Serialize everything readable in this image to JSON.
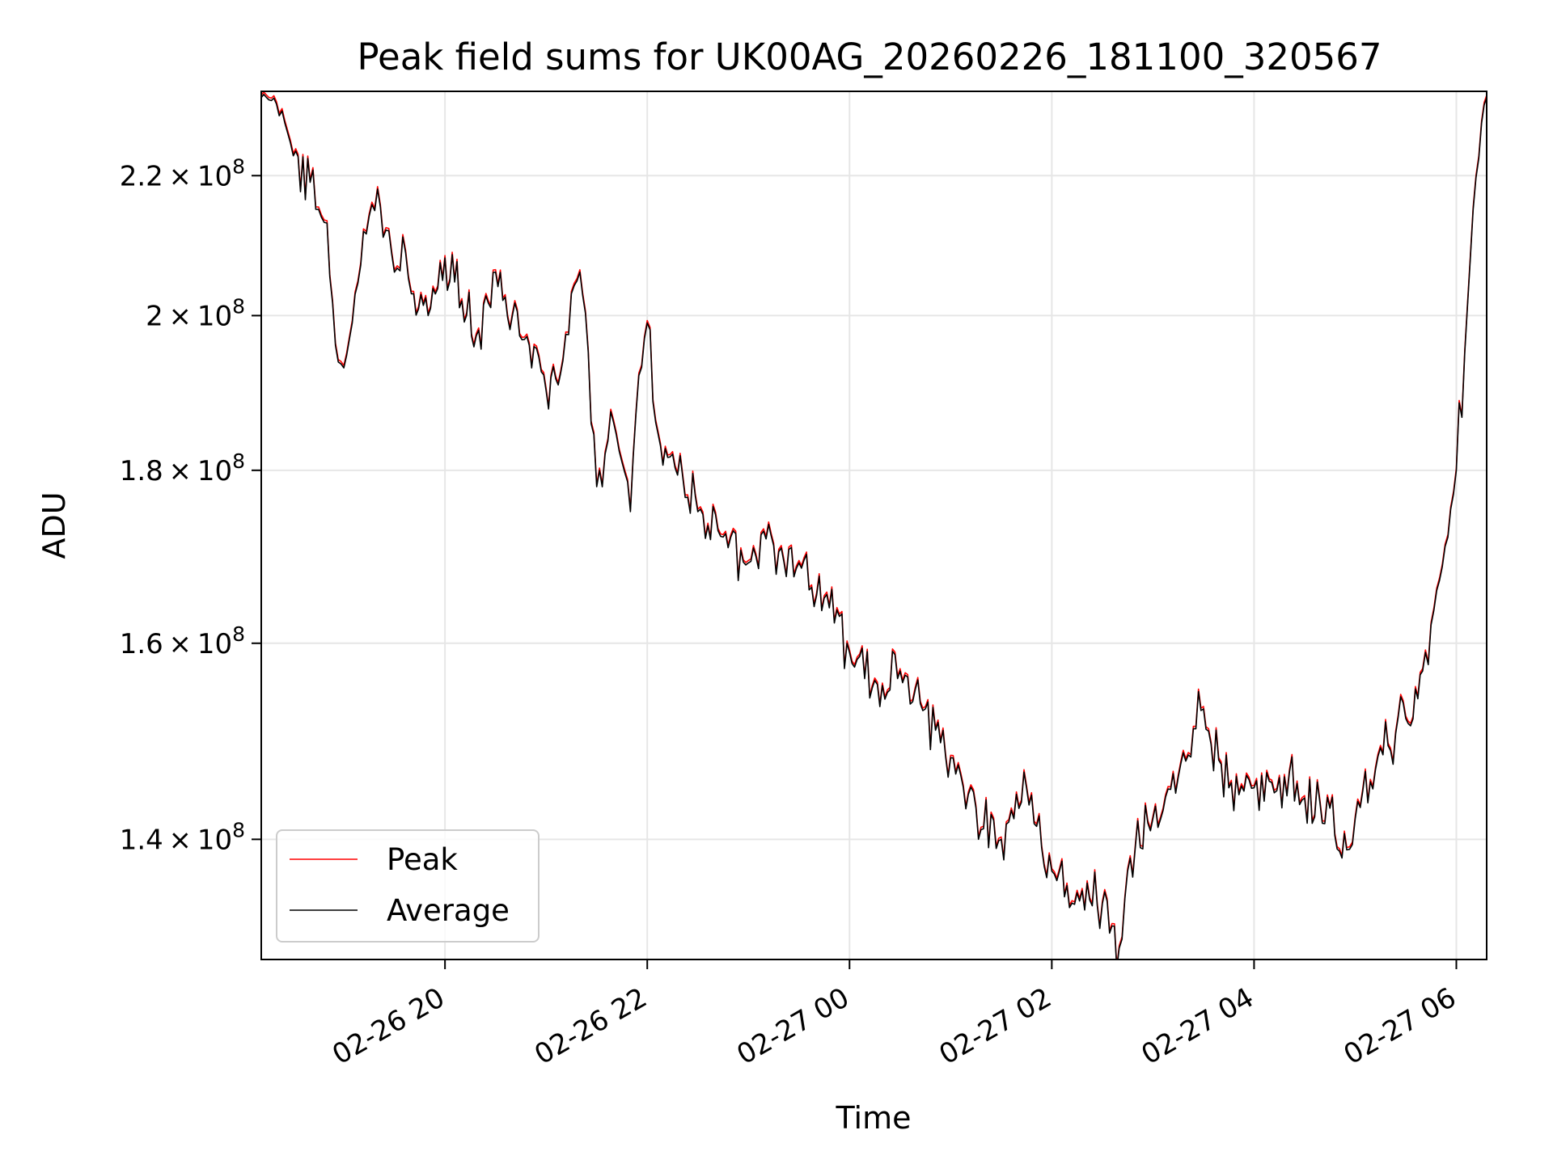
{
  "chart_data": {
    "type": "line",
    "title": "Peak field sums for UK00AG_20260226_181100_320567",
    "xlabel": "Time",
    "ylabel": "ADU",
    "y_scale": "log",
    "x_start": "2026-02-26T18:11",
    "xlim": [
      "2026-02-26T18:11",
      "2026-02-27T06:18"
    ],
    "ylim": [
      129000000,
      233000000
    ],
    "grid": true,
    "legend_position": "lower-left",
    "x_ticks": [
      {
        "value": "2026-02-26T20:00",
        "label": "02-26 20"
      },
      {
        "value": "2026-02-26T22:00",
        "label": "02-26 22"
      },
      {
        "value": "2026-02-27T00:00",
        "label": "02-27 00"
      },
      {
        "value": "2026-02-27T02:00",
        "label": "02-27 02"
      },
      {
        "value": "2026-02-27T04:00",
        "label": "02-27 04"
      },
      {
        "value": "2026-02-27T06:00",
        "label": "02-27 06"
      }
    ],
    "y_ticks": [
      {
        "value": 140000000,
        "mantissa": "1.4",
        "exp": "8"
      },
      {
        "value": 160000000,
        "mantissa": "1.6",
        "exp": "8"
      },
      {
        "value": 180000000,
        "mantissa": "1.8",
        "exp": "8"
      },
      {
        "value": 200000000,
        "mantissa": "2",
        "exp": "8"
      },
      {
        "value": 220000000,
        "mantissa": "2.2",
        "exp": "8"
      }
    ],
    "series": [
      {
        "name": "Peak",
        "color": "#ff0000"
      },
      {
        "name": "Average",
        "color": "#000000"
      }
    ],
    "x": [
      "2026-02-26T18:11",
      "2026-02-26T18:20",
      "2026-02-26T18:25",
      "2026-02-26T18:30",
      "2026-02-26T18:40",
      "2026-02-26T18:45",
      "2026-02-26T18:50",
      "2026-02-26T18:55",
      "2026-02-26T19:00",
      "2026-02-26T19:05",
      "2026-02-26T19:10",
      "2026-02-26T19:15",
      "2026-02-26T19:20",
      "2026-02-26T19:25",
      "2026-02-26T19:30",
      "2026-02-26T19:35",
      "2026-02-26T19:40",
      "2026-02-26T19:50",
      "2026-02-26T20:00",
      "2026-02-26T20:10",
      "2026-02-26T20:20",
      "2026-02-26T20:30",
      "2026-02-26T20:40",
      "2026-02-26T20:50",
      "2026-02-26T21:00",
      "2026-02-26T21:10",
      "2026-02-26T21:15",
      "2026-02-26T21:20",
      "2026-02-26T21:25",
      "2026-02-26T21:30",
      "2026-02-26T21:35",
      "2026-02-26T21:40",
      "2026-02-26T21:45",
      "2026-02-26T21:50",
      "2026-02-26T21:55",
      "2026-02-26T22:00",
      "2026-02-26T22:05",
      "2026-02-26T22:15",
      "2026-02-26T22:30",
      "2026-02-26T22:45",
      "2026-02-26T23:00",
      "2026-02-26T23:15",
      "2026-02-26T23:30",
      "2026-02-26T23:45",
      "2026-02-27T00:00",
      "2026-02-27T00:15",
      "2026-02-27T00:30",
      "2026-02-27T00:45",
      "2026-02-27T01:00",
      "2026-02-27T01:15",
      "2026-02-27T01:30",
      "2026-02-27T01:45",
      "2026-02-27T02:00",
      "2026-02-27T02:15",
      "2026-02-27T02:30",
      "2026-02-27T02:40",
      "2026-02-27T02:45",
      "2026-02-27T03:00",
      "2026-02-27T03:15",
      "2026-02-27T03:30",
      "2026-02-27T03:45",
      "2026-02-27T04:00",
      "2026-02-27T04:15",
      "2026-02-27T04:30",
      "2026-02-27T04:45",
      "2026-02-27T04:55",
      "2026-02-27T05:00",
      "2026-02-27T05:15",
      "2026-02-27T05:30",
      "2026-02-27T05:40",
      "2026-02-27T05:45",
      "2026-02-27T05:50",
      "2026-02-27T05:55",
      "2026-02-27T06:00",
      "2026-02-27T06:05",
      "2026-02-27T06:10",
      "2026-02-27T06:15",
      "2026-02-27T06:18"
    ],
    "y": [
      232000000,
      231000000,
      228000000,
      223000000,
      219000000,
      215000000,
      213000000,
      196000000,
      193000000,
      199000000,
      207000000,
      214000000,
      218000000,
      212000000,
      206000000,
      211000000,
      203000000,
      200000000,
      208000000,
      202000000,
      198000000,
      206000000,
      200000000,
      196000000,
      190000000,
      194000000,
      203000000,
      206000000,
      195000000,
      178000000,
      182000000,
      186000000,
      181000000,
      175000000,
      192000000,
      199000000,
      186000000,
      182000000,
      175000000,
      172000000,
      169000000,
      171000000,
      169000000,
      165000000,
      159000000,
      156000000,
      157000000,
      153000000,
      148000000,
      143000000,
      140000000,
      145000000,
      137000000,
      135000000,
      134000000,
      130000000,
      137000000,
      142000000,
      146000000,
      153000000,
      145000000,
      145000000,
      146000000,
      144000000,
      143000000,
      139000000,
      142000000,
      149000000,
      152000000,
      157000000,
      162000000,
      167000000,
      172000000,
      180000000,
      195000000,
      215000000,
      228000000,
      232000000
    ]
  }
}
